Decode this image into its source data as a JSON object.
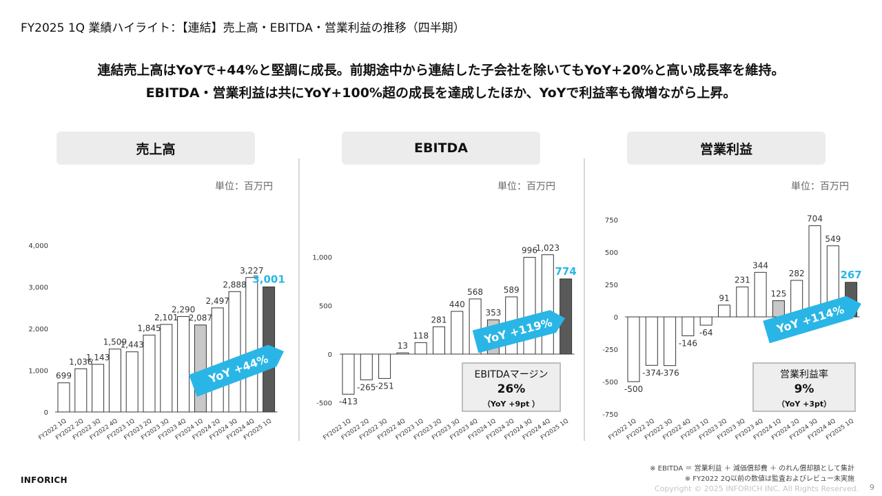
{
  "title": "FY2025 1Q 業績ハイライト：【連結】売上高・EBITDA・営業利益の推移（四半期）",
  "headline1": "連結売上高はYoYで+44%と堅調に成長。前期途中から連結した子会社を除いてもYoY+20%と高い成長率を維持。",
  "headline2": "EBITDA・営業利益は共にYoY+100%超の成長を達成したほか、YoYで利益率も微増ながら上昇。",
  "unit_label": "単位：百万円",
  "colors": {
    "accent": "#29b6e6",
    "current_bar": "#595959",
    "prior_year_bar": "#c8c8c8",
    "bar": "#ffffff"
  },
  "charts": {
    "revenue": {
      "header": "売上高",
      "yoy_label": "YoY +44%"
    },
    "ebitda": {
      "header": "EBITDA",
      "yoy_label": "YoY +119%",
      "margin_box": {
        "title": "EBITDAマージン",
        "value": "26%",
        "sub": "（YoY +9pt ）"
      }
    },
    "op": {
      "header": "営業利益",
      "yoy_label": "YoY +114%",
      "margin_box": {
        "title": "営業利益率",
        "value": "9%",
        "sub": "（YoY +3pt）"
      }
    }
  },
  "chart_data": [
    {
      "type": "bar",
      "title": "売上高",
      "categories": [
        "FY2022 1Q",
        "FY2022 2Q",
        "FY2022 3Q",
        "FY2022 4Q",
        "FY2023 1Q",
        "FY2023 2Q",
        "FY2023 3Q",
        "FY2023 4Q",
        "FY2024 1Q",
        "FY2024 2Q",
        "FY2024 3Q",
        "FY2024 4Q",
        "FY2025 1Q"
      ],
      "values": [
        699,
        1036,
        1143,
        1509,
        1443,
        1845,
        2101,
        2290,
        2087,
        2497,
        2888,
        3227,
        3001
      ],
      "value_labels": [
        "699",
        "1,036",
        "1,143",
        "1,509",
        "1,443",
        "1,845",
        "2,101",
        "2,290",
        "2,087",
        "2,497",
        "2,888",
        "3,227",
        "3,001"
      ],
      "yticks": [
        0,
        1000,
        2000,
        3000,
        4000
      ],
      "ytick_labels": [
        "0",
        "1,000",
        "2,000",
        "3,000",
        "4,000"
      ],
      "ylim": [
        0,
        4000
      ],
      "grid": false
    },
    {
      "type": "bar",
      "title": "EBITDA",
      "categories": [
        "FY2022 1Q",
        "FY2022 2Q",
        "FY2022 3Q",
        "FY2022 4Q",
        "FY2023 1Q",
        "FY2023 2Q",
        "FY2023 3Q",
        "FY2023 4Q",
        "FY2024 1Q",
        "FY2024 2Q",
        "FY2024 3Q",
        "FY2024 4Q",
        "FY2025 1Q"
      ],
      "values": [
        -413,
        -265,
        -251,
        13,
        118,
        281,
        440,
        568,
        353,
        589,
        996,
        1023,
        774
      ],
      "value_labels": [
        "-413",
        "-265",
        "-251",
        "13",
        "118",
        "281",
        "440",
        "568",
        "353",
        "589",
        "996",
        "1,023",
        "774"
      ],
      "yticks": [
        -500,
        0,
        500,
        1000
      ],
      "ytick_labels": [
        "-500",
        "0",
        "500",
        "1,000"
      ],
      "ylim": [
        -500,
        1000
      ],
      "grid": false
    },
    {
      "type": "bar",
      "title": "営業利益",
      "categories": [
        "FY2022 1Q",
        "FY2022 2Q",
        "FY2022 3Q",
        "FY2022 4Q",
        "FY2023 1Q",
        "FY2023 2Q",
        "FY2023 3Q",
        "FY2023 4Q",
        "FY2024 1Q",
        "FY2024 2Q",
        "FY2024 3Q",
        "FY2024 4Q",
        "FY2025 1Q"
      ],
      "values": [
        -500,
        -374,
        -376,
        -146,
        -64,
        91,
        231,
        344,
        125,
        282,
        704,
        549,
        267
      ],
      "value_labels": [
        "-500",
        "-374",
        "-376",
        "-146",
        "-64",
        "91",
        "231",
        "344",
        "125",
        "282",
        "704",
        "549",
        "267"
      ],
      "yticks": [
        -750,
        -500,
        -250,
        0,
        250,
        500,
        750
      ],
      "ytick_labels": [
        "-750",
        "-500",
        "-250",
        "0",
        "250",
        "500",
        "750"
      ],
      "ylim": [
        -750,
        750
      ],
      "grid": false
    }
  ],
  "footnotes": [
    "※ EBITDA ＝ 営業利益 ＋ 減価償却費 ＋ のれん償却額として集計",
    "※ FY2022 2Q以前の数値は監査およびレビュー未実施"
  ],
  "logo": "INFORICH",
  "copyright": "Copyright © 2025 INFORICH INC. All Rights Reserved.",
  "page_number": "9"
}
